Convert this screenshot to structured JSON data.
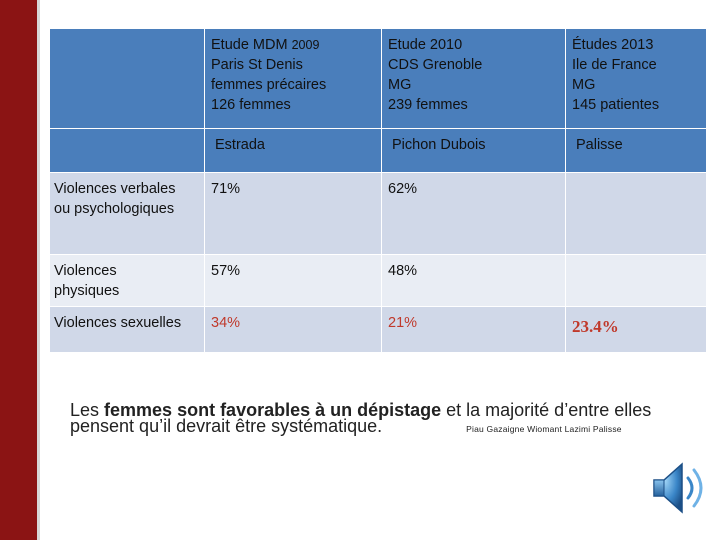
{
  "table": {
    "headers": [
      {
        "lines": [
          "Etude MDM",
          "Paris  St Denis",
          "femmes précaires",
          "126 femmes"
        ],
        "year": "2009",
        "author": "Estrada"
      },
      {
        "lines": [
          "Etude 2010",
          "CDS Grenoble",
          "MG",
          "239 femmes"
        ],
        "author": "Pichon Dubois"
      },
      {
        "lines": [
          "Études 2013",
          "Ile de France",
          "MG",
          "145 patientes"
        ],
        "author": "Palisse"
      }
    ],
    "rows": [
      {
        "label_lines": [
          "Violences verbales",
          "ou psychologiques"
        ],
        "values": [
          "71%",
          "62%",
          ""
        ]
      },
      {
        "label_lines": [
          "Violences",
          "physiques"
        ],
        "values": [
          "57%",
          "48%",
          ""
        ]
      },
      {
        "label_lines": [
          "Violences sexuelles"
        ],
        "values": [
          "34%",
          "21%",
          "23.4%"
        ]
      }
    ]
  },
  "note": {
    "prefix": "Les ",
    "bold1": "femmes sont favorables à un dépistage",
    "suffix1": " et la majorité d’entre elles",
    "line2": "pensent qu’il devrait être systématique.",
    "authors": "Piau   Gazaigne   Wiomant  Lazimi  Palisse"
  }
}
